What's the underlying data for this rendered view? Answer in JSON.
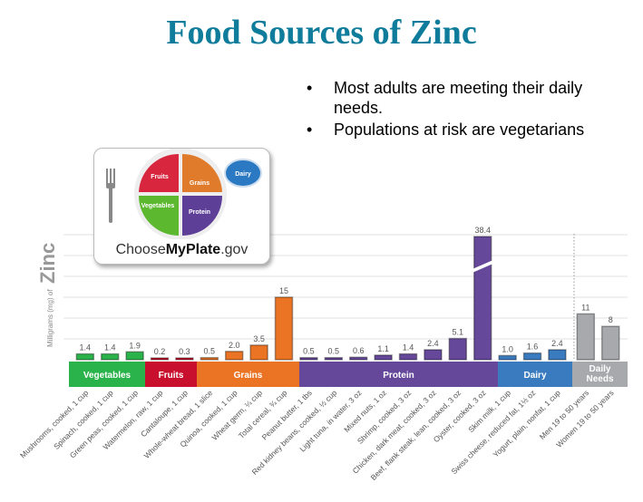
{
  "slide": {
    "title": "Food Sources of Zinc",
    "bullets": [
      "Most adults are meeting their daily needs.",
      "Populations at risk are vegetarians"
    ]
  },
  "logo": {
    "prefix": "Choose",
    "bold": "MyPlate",
    "suffix": ".gov",
    "sections": [
      "Fruits",
      "Grains",
      "Vegetables",
      "Protein",
      "Dairy"
    ]
  },
  "chart_data": {
    "type": "bar",
    "ylabel_small": "Milligrams (mg) of",
    "ylabel_big": "Zinc",
    "y_axis_broken": true,
    "grid": true,
    "categories": [
      "Mushrooms, cooked, 1 cup",
      "Spinach, cooked, 1 cup",
      "Green peas, cooked, 1 cup",
      "Watermelon, raw, 1 cup",
      "Cantaloupe, 1 cup",
      "Whole-wheat bread, 1 slice",
      "Quinoa, cooked, 1 cup",
      "Wheat germ, ¼ cup",
      "Total cereal, ¾ cup",
      "Peanut butter, 1 tbs",
      "Red kidney beans, cooked, ½ cup",
      "Light tuna, in water, 3 oz",
      "Mixed nuts, 1 oz",
      "Shrimp, cooked, 3 oz",
      "Chicken, dark meat, cooked, 3 oz",
      "Beef, flank steak, lean, cooked, 3 oz",
      "Oyster, cooked, 3 oz",
      "Skim milk, 1 cup",
      "Swiss cheese, reduced fat, 1½ oz",
      "Yogurt, plain, nonfat, 1 cup",
      "Men 19 to 50 years",
      "Women 19 to 50 years"
    ],
    "values": [
      1.4,
      1.4,
      1.9,
      0.2,
      0.3,
      0.5,
      2.0,
      3.5,
      15,
      0.5,
      0.5,
      0.6,
      1.1,
      1.4,
      2.4,
      5.1,
      38.4,
      1.0,
      1.6,
      2.4,
      11,
      8
    ],
    "value_labels": [
      "1.4",
      "1.4",
      "1.9",
      "0.2",
      "0.3",
      "0.5",
      "2.0",
      "3.5",
      "15",
      "0.5",
      "0.5",
      "0.6",
      "1.1",
      "1.4",
      "2.4",
      "5.1",
      "38.4",
      "1.0",
      "1.6",
      "2.4",
      "11",
      "8"
    ],
    "groups": [
      {
        "name": "Vegetables",
        "count": 3,
        "color": "#2bb34b"
      },
      {
        "name": "Fruits",
        "count": 2,
        "color": "#c8102e"
      },
      {
        "name": "Grains",
        "count": 4,
        "color": "#ea7424"
      },
      {
        "name": "Protein",
        "count": 8,
        "color": "#65489a"
      },
      {
        "name": "Dairy",
        "count": 3,
        "color": "#3a7bbf"
      },
      {
        "name": "Daily Needs",
        "count": 2,
        "color": "#a7a9ac"
      }
    ]
  }
}
